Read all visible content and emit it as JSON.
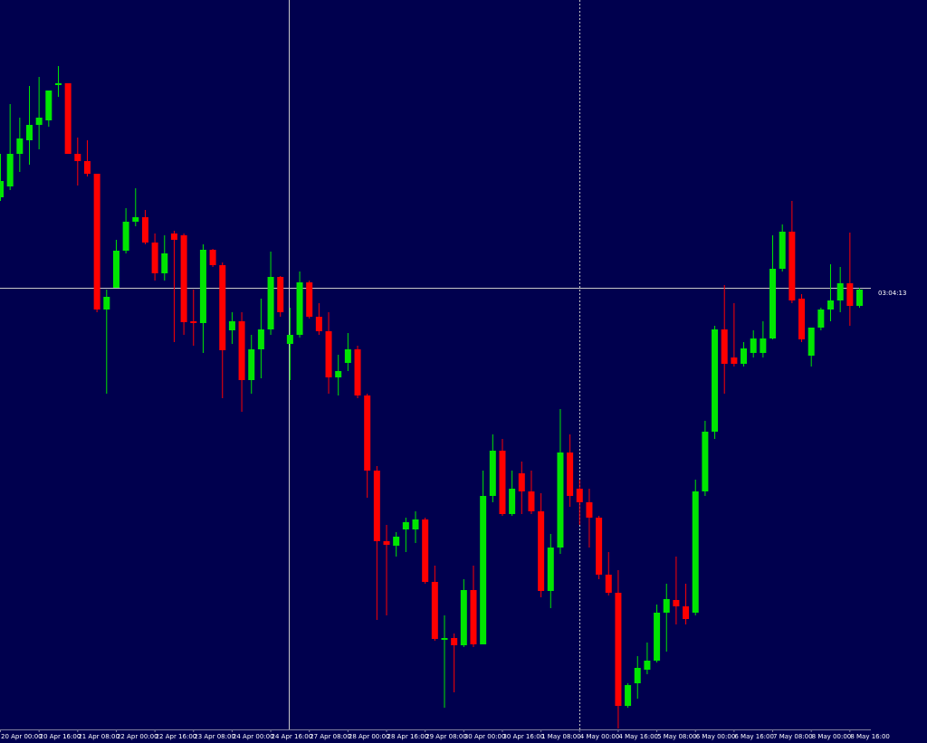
{
  "chart_data": {
    "type": "candlestick",
    "categories": [
      "20 Apr 00:00",
      null,
      null,
      null,
      "20 Apr 16:00",
      null,
      null,
      null,
      "21 Apr 08:00",
      null,
      null,
      null,
      "22 Apr 00:00",
      null,
      null,
      null,
      "22 Apr 16:00",
      null,
      null,
      null,
      "23 Apr 08:00",
      null,
      null,
      null,
      "24 Apr 00:00",
      null,
      null,
      null,
      "24 Apr 16:00",
      null,
      null,
      null,
      "27 Apr 08:00",
      null,
      null,
      null,
      "28 Apr 00:00",
      null,
      null,
      null,
      "28 Apr 16:00",
      null,
      null,
      null,
      "29 Apr 08:00",
      null,
      null,
      null,
      "30 Apr 00:00",
      null,
      null,
      null,
      "30 Apr 16:00",
      null,
      null,
      null,
      "1 May 08:00",
      null,
      null,
      null,
      "4 May 00:00",
      null,
      null,
      null,
      "4 May 16:00",
      null,
      null,
      null,
      "5 May 08:00",
      null,
      null,
      null,
      "6 May 00:00",
      null,
      null,
      null,
      "6 May 16:00",
      null,
      null,
      null,
      "7 May 08:00",
      null,
      null,
      null,
      "8 May 00:00",
      null,
      null,
      null,
      "8 May 16:00",
      null
    ],
    "open": [
      588,
      600,
      636,
      651,
      668,
      673,
      712,
      714,
      636,
      628,
      614,
      464,
      488,
      529,
      561,
      566,
      538,
      504,
      548,
      546,
      451,
      449,
      530,
      513,
      441,
      451,
      386,
      420,
      442,
      500,
      426,
      436,
      494,
      456,
      440,
      389,
      405,
      420,
      369,
      286,
      208,
      203,
      221,
      221,
      232,
      163,
      99,
      101,
      93,
      154,
      94,
      258,
      308,
      238,
      283,
      263,
      241,
      153,
      201,
      306,
      266,
      251,
      234,
      171,
      151,
      26,
      51,
      66,
      76,
      129,
      143,
      136,
      129,
      263,
      329,
      442,
      411,
      404,
      416,
      416,
      432,
      509,
      550,
      476,
      413,
      444,
      464,
      474,
      493,
      468
    ],
    "high": [
      636,
      691,
      676,
      711,
      721,
      706,
      733,
      714,
      654,
      651,
      614,
      486,
      541,
      576,
      598,
      574,
      548,
      546,
      551,
      548,
      486,
      536,
      531,
      516,
      461,
      461,
      436,
      476,
      528,
      501,
      466,
      506,
      496,
      471,
      461,
      414,
      438,
      424,
      371,
      291,
      226,
      218,
      234,
      241,
      234,
      181,
      126,
      106,
      166,
      181,
      286,
      326,
      321,
      286,
      296,
      286,
      261,
      216,
      354,
      326,
      276,
      266,
      236,
      196,
      176,
      51,
      81,
      96,
      138,
      161,
      191,
      161,
      276,
      341,
      446,
      491,
      471,
      428,
      441,
      451,
      546,
      558,
      584,
      481,
      444,
      466,
      514,
      511,
      549,
      488
    ],
    "low": [
      584,
      596,
      616,
      624,
      641,
      666,
      699,
      636,
      601,
      611,
      461,
      371,
      488,
      526,
      556,
      536,
      496,
      496,
      428,
      436,
      424,
      416,
      511,
      366,
      426,
      351,
      371,
      388,
      436,
      456,
      386,
      433,
      454,
      436,
      371,
      369,
      396,
      366,
      256,
      121,
      126,
      191,
      196,
      206,
      161,
      98,
      24,
      41,
      91,
      91,
      94,
      251,
      236,
      236,
      238,
      238,
      146,
      134,
      194,
      246,
      226,
      201,
      166,
      148,
      1,
      24,
      34,
      61,
      74,
      86,
      116,
      116,
      126,
      258,
      321,
      371,
      401,
      401,
      411,
      411,
      431,
      506,
      471,
      428,
      401,
      441,
      451,
      461,
      446,
      466
    ],
    "close": [
      606,
      636,
      653,
      668,
      676,
      706,
      714,
      636,
      628,
      614,
      464,
      478,
      529,
      561,
      566,
      538,
      504,
      526,
      541,
      450,
      449,
      530,
      513,
      419,
      451,
      386,
      420,
      442,
      500,
      461,
      436,
      494,
      456,
      440,
      389,
      396,
      420,
      369,
      286,
      208,
      204,
      213,
      229,
      232,
      163,
      100,
      101,
      93,
      154,
      94,
      258,
      308,
      238,
      266,
      263,
      241,
      153,
      201,
      306,
      258,
      251,
      234,
      171,
      151,
      26,
      49,
      68,
      76,
      129,
      144,
      136,
      122,
      263,
      329,
      442,
      404,
      404,
      421,
      432,
      432,
      509,
      550,
      474,
      431,
      444,
      464,
      474,
      493,
      468,
      486
    ],
    "up_color": "#00e600",
    "down_color": "#ff0000",
    "ylim": [
      0,
      806
    ],
    "annotation": "03:04:13"
  }
}
